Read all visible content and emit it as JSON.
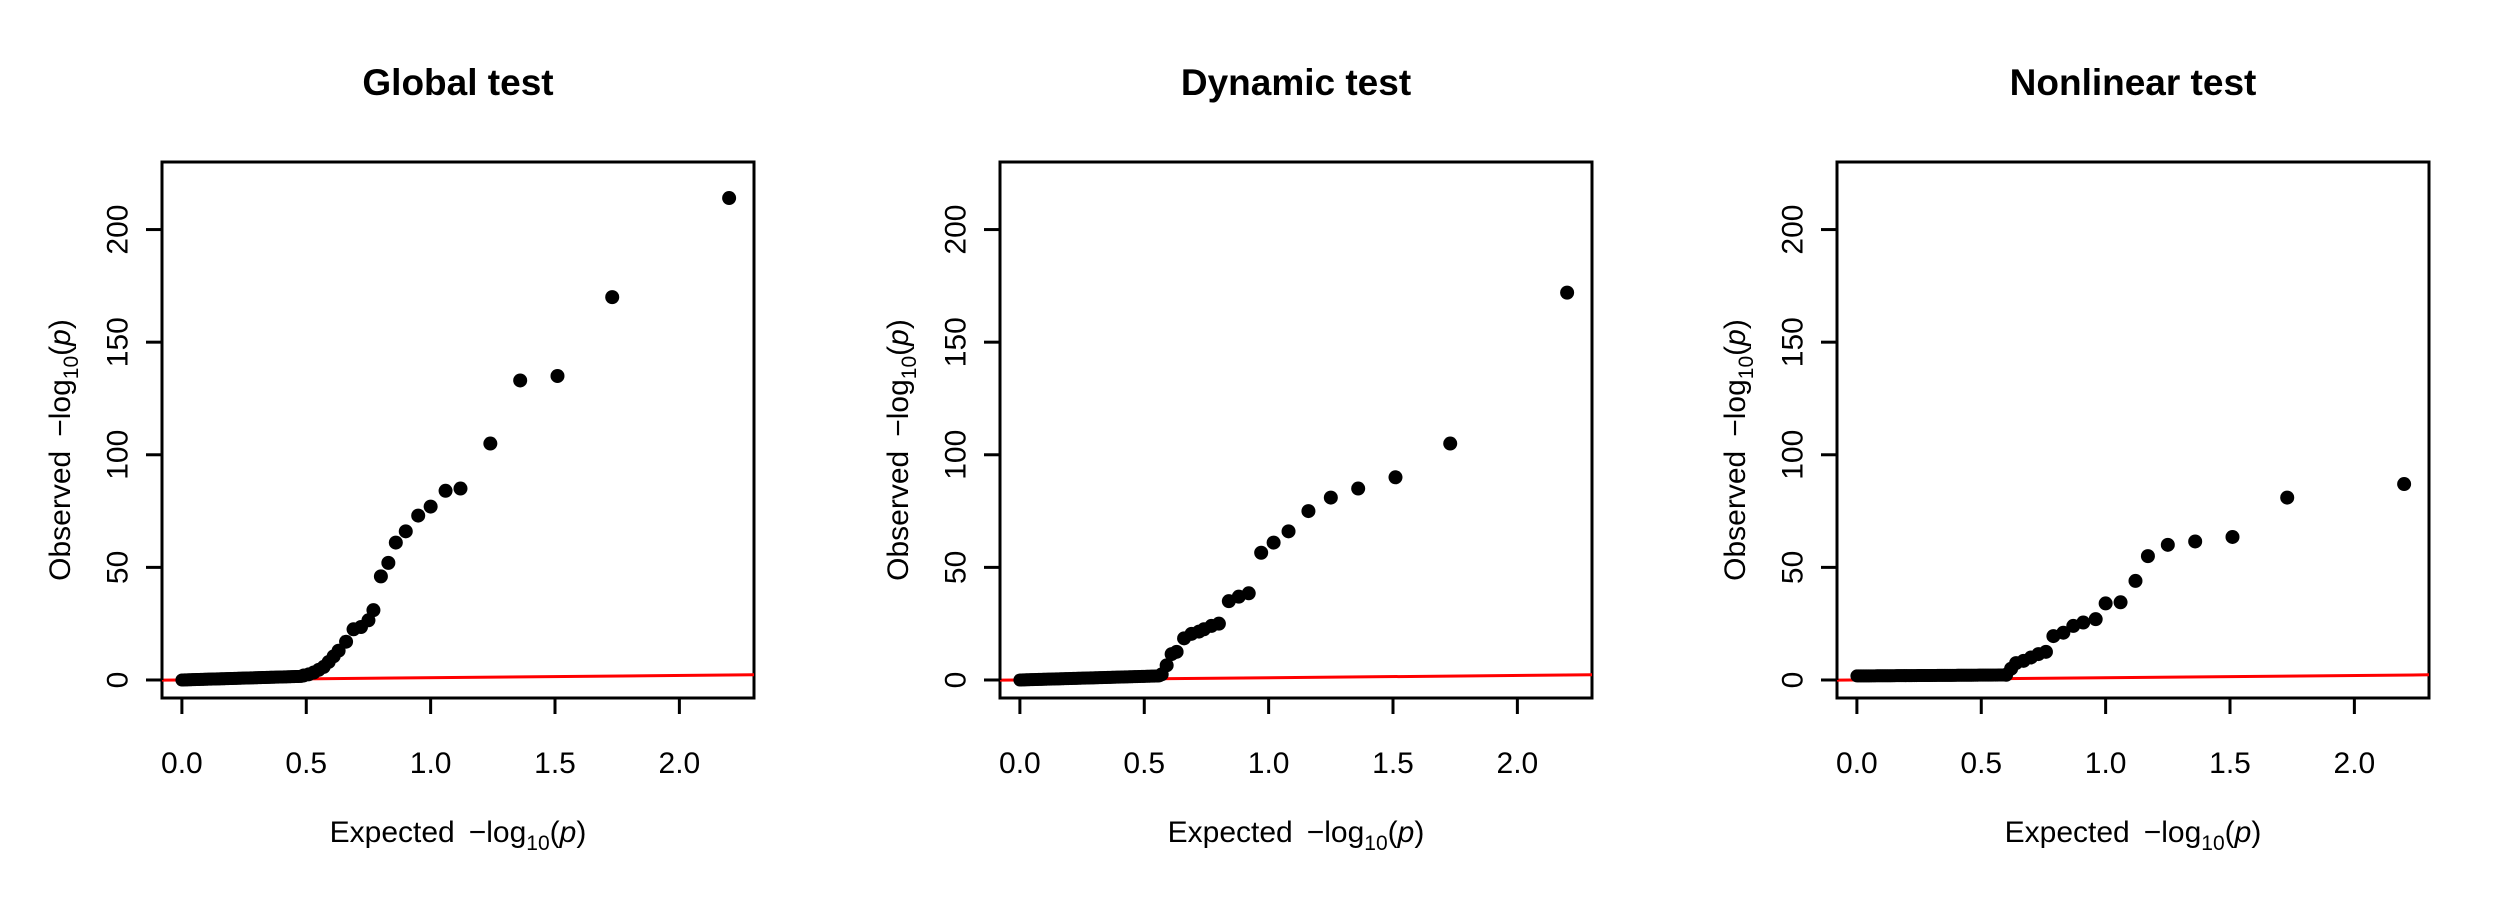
{
  "chart_data": [
    {
      "type": "scatter",
      "title": "Global test",
      "xlabel": "Expected",
      "ylabel": "Observed",
      "xlim": [
        -0.08,
        2.3
      ],
      "ylim": [
        -8,
        230
      ],
      "x_ticks": [
        "0.0",
        "0.5",
        "1.0",
        "1.5",
        "2.0"
      ],
      "y_ticks": [
        "0",
        "50",
        "100",
        "150",
        "200"
      ],
      "reference_line": {
        "color": "#ff0000",
        "slope": 1,
        "intercept": 0
      },
      "point_color": "#000000",
      "points": [
        [
          0.49,
          2.0
        ],
        [
          0.51,
          2.5
        ],
        [
          0.53,
          3.3
        ],
        [
          0.55,
          4.5
        ],
        [
          0.57,
          5.8
        ],
        [
          0.59,
          8.0
        ],
        [
          0.61,
          10.5
        ],
        [
          0.63,
          13.0
        ],
        [
          0.66,
          17.0
        ],
        [
          0.69,
          22.5
        ],
        [
          0.72,
          23.5
        ],
        [
          0.75,
          26.5
        ],
        [
          0.77,
          31.0
        ],
        [
          0.8,
          46.0
        ],
        [
          0.83,
          52.0
        ],
        [
          0.86,
          61.0
        ],
        [
          0.9,
          66.0
        ],
        [
          0.95,
          73.0
        ],
        [
          1.0,
          77.0
        ],
        [
          1.06,
          84.0
        ],
        [
          1.12,
          85.0
        ],
        [
          1.24,
          105.0
        ],
        [
          1.36,
          133.0
        ],
        [
          1.51,
          135.0
        ],
        [
          1.73,
          170.0
        ],
        [
          2.2,
          214.0
        ]
      ],
      "dense_segment": {
        "x_from": 0.0,
        "x_to": 0.48,
        "y_from": 0.0,
        "y_to": 1.6
      }
    },
    {
      "type": "scatter",
      "title": "Dynamic test",
      "xlabel": "Expected",
      "ylabel": "Observed",
      "xlim": [
        -0.08,
        2.3
      ],
      "ylim": [
        -8,
        230
      ],
      "x_ticks": [
        "0.0",
        "0.5",
        "1.0",
        "1.5",
        "2.0"
      ],
      "y_ticks": [
        "0",
        "50",
        "100",
        "150",
        "200"
      ],
      "reference_line": {
        "color": "#ff0000",
        "slope": 1,
        "intercept": 0
      },
      "point_color": "#000000",
      "points": [
        [
          0.57,
          2.5
        ],
        [
          0.59,
          6.5
        ],
        [
          0.61,
          11.5
        ],
        [
          0.63,
          12.5
        ],
        [
          0.66,
          18.5
        ],
        [
          0.69,
          20.5
        ],
        [
          0.72,
          21.5
        ],
        [
          0.74,
          22.5
        ],
        [
          0.77,
          24.0
        ],
        [
          0.8,
          25.0
        ],
        [
          0.84,
          35.0
        ],
        [
          0.88,
          37.0
        ],
        [
          0.92,
          38.5
        ],
        [
          0.97,
          56.5
        ],
        [
          1.02,
          61.0
        ],
        [
          1.08,
          66.0
        ],
        [
          1.16,
          75.0
        ],
        [
          1.25,
          81.0
        ],
        [
          1.36,
          85.0
        ],
        [
          1.51,
          90.0
        ],
        [
          1.73,
          105.0
        ],
        [
          2.2,
          172.0
        ]
      ],
      "dense_segment": {
        "x_from": 0.0,
        "x_to": 0.56,
        "y_from": 0.0,
        "y_to": 1.8
      }
    },
    {
      "type": "scatter",
      "title": "Nonlinear test",
      "xlabel": "Expected",
      "ylabel": "Observed",
      "xlim": [
        -0.08,
        2.3
      ],
      "ylim": [
        -8,
        230
      ],
      "x_ticks": [
        "0.0",
        "0.5",
        "1.0",
        "1.5",
        "2.0"
      ],
      "y_ticks": [
        "0",
        "50",
        "100",
        "150",
        "200"
      ],
      "reference_line": {
        "color": "#ff0000",
        "slope": 1,
        "intercept": 0
      },
      "point_color": "#000000",
      "points": [
        [
          0.6,
          2.3
        ],
        [
          0.62,
          5.0
        ],
        [
          0.64,
          7.5
        ],
        [
          0.67,
          8.5
        ],
        [
          0.7,
          10.0
        ],
        [
          0.73,
          11.5
        ],
        [
          0.76,
          12.5
        ],
        [
          0.79,
          19.5
        ],
        [
          0.83,
          21.0
        ],
        [
          0.87,
          24.0
        ],
        [
          0.91,
          25.5
        ],
        [
          0.96,
          27.0
        ],
        [
          1.0,
          34.0
        ],
        [
          1.06,
          34.5
        ],
        [
          1.12,
          44.0
        ],
        [
          1.17,
          55.0
        ],
        [
          1.25,
          60.0
        ],
        [
          1.36,
          61.5
        ],
        [
          1.51,
          63.5
        ],
        [
          1.73,
          81.0
        ],
        [
          2.2,
          87.0
        ]
      ],
      "dense_segment": {
        "x_from": 0.0,
        "x_to": 0.59,
        "y_from": 1.8,
        "y_to": 2.2
      }
    }
  ]
}
